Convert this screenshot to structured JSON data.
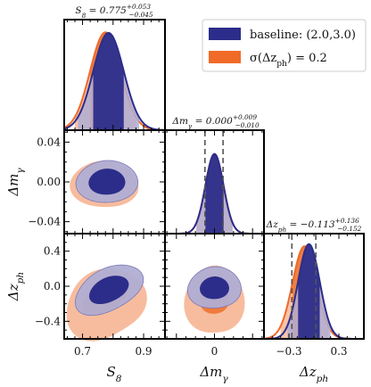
{
  "chart_data": {
    "type": "corner",
    "parameters": [
      "S8",
      "dm_gamma",
      "dz_ph"
    ],
    "axis_labels": {
      "S8": "S_8",
      "dm_gamma": "Δm_γ",
      "dz_ph": "Δz_ph"
    },
    "titles": {
      "S8": "S_8 = 0.775^{+0.053}_{−0.045}",
      "dm_gamma": "Δm_γ = 0.000^{+0.009}_{−0.010}",
      "dz_ph": "Δz_ph = −0.113^{+0.136}_{−0.152}"
    },
    "ranges": {
      "S8": [
        0.64,
        0.97
      ],
      "dm_gamma": [
        -0.052,
        0.052
      ],
      "dz_ph": [
        -0.6,
        0.6
      ]
    },
    "ticks": {
      "S8": {
        "values": [
          0.7,
          0.8,
          0.9
        ],
        "labels": [
          "0.7",
          "",
          "0.9"
        ]
      },
      "dm_gamma": {
        "values": [
          -0.04,
          0.0,
          0.04
        ],
        "labels": [
          "−0.04",
          "0.00",
          "0.04"
        ]
      },
      "dz_ph_y": {
        "values": [
          -0.4,
          0.0,
          0.4
        ],
        "labels": [
          "−0.4",
          "0.0",
          "0.4"
        ]
      },
      "dm_gamma_x": {
        "values": [
          0.0
        ],
        "labels": [
          "0"
        ]
      },
      "dz_ph_x": {
        "values": [
          -0.3,
          0.3
        ],
        "labels": [
          "−0.3",
          "0.3"
        ]
      }
    },
    "series": [
      {
        "name": "baseline: (2.0,3.0)",
        "color": "#2c2d8a",
        "marginals": {
          "S8": {
            "mean": 0.785,
            "sigma": 0.05
          },
          "dm_gamma": {
            "mean": 0.0,
            "sigma": 0.0095
          },
          "dz_ph": {
            "mean": -0.06,
            "sigma": 0.13
          }
        }
      },
      {
        "name": "σ(Δz_ph) = 0.2",
        "color": "#f06a28",
        "marginals": {
          "S8": {
            "mean": 0.775,
            "sigma": 0.05
          },
          "dm_gamma": {
            "mean": 0.0,
            "sigma": 0.0095
          },
          "dz_ph": {
            "mean": -0.113,
            "sigma": 0.144
          }
        }
      }
    ],
    "quantile_lines": {
      "dm_gamma": [
        -0.01,
        0.009
      ],
      "dz_ph": [
        -0.265,
        0.023
      ]
    },
    "legend_placement": "top-right",
    "grid": false
  },
  "legend": {
    "baseline_label": "baseline: (2.0,3.0)",
    "alt_label": "σ(Δz_ph) = 0.2"
  }
}
